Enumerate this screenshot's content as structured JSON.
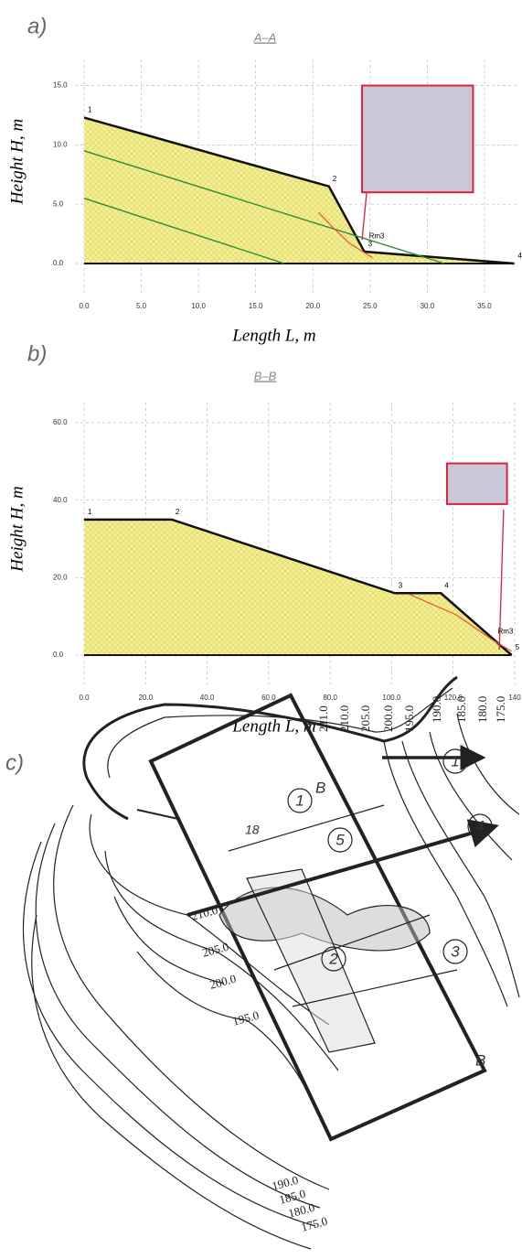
{
  "chart_data": [
    {
      "type": "area",
      "panel": "a)",
      "title": "A–A",
      "x_label": "Length  L, m",
      "y_label": "Height  H, m",
      "x": [
        0,
        21.4,
        24.5,
        37.6
      ],
      "values": [
        12.3,
        6.5,
        1.0,
        0
      ],
      "point_labels": [
        "1",
        "2",
        "3",
        "4"
      ],
      "fill": "#f4f08c",
      "line_color": "#111111",
      "lines": [
        {
          "x": [
            0,
            31.5
          ],
          "values": [
            9.5,
            0
          ],
          "color": "#2e8b3a"
        },
        {
          "x": [
            0,
            17.5
          ],
          "values": [
            5.5,
            0
          ],
          "color": "#2e8b3a"
        }
      ],
      "arc": {
        "x": [
          20.5,
          21.8,
          23.2,
          25.2
        ],
        "values": [
          4.3,
          3.0,
          1.7,
          0.5
        ],
        "color": "#e8503a"
      },
      "box": {
        "x": [
          24.3,
          34
        ],
        "y": [
          6,
          15
        ],
        "color": "#e0203c",
        "fill": "#c8c8d8"
      },
      "connector": {
        "x": [
          24.7,
          24.3
        ],
        "values": [
          6,
          2
        ],
        "color": "#e0203c"
      },
      "annotation": {
        "text": "Rm3",
        "x": 24.9,
        "y": 2.3
      },
      "xlim": [
        0,
        37.8
      ],
      "ylim": [
        0,
        17.2
      ],
      "xticks": [
        {
          "value": 0,
          "label": "0.0"
        },
        {
          "value": 5,
          "label": "5.0"
        },
        {
          "value": 10,
          "label": "10.0"
        },
        {
          "value": 15,
          "label": "15.0"
        },
        {
          "value": 20,
          "label": "20.0"
        },
        {
          "value": 25,
          "label": "25.0"
        },
        {
          "value": 30,
          "label": "30.0"
        },
        {
          "value": 35,
          "label": "35.0"
        }
      ],
      "yticks": [
        {
          "value": 0,
          "label": "0.0"
        },
        {
          "value": 5,
          "label": "5.0"
        },
        {
          "value": 10,
          "label": "10.0"
        },
        {
          "value": 15,
          "label": "15.0"
        }
      ],
      "grid": true
    },
    {
      "type": "area",
      "panel": "b)",
      "title": "B–B",
      "x_label": "Length  L, m",
      "y_label": "Height  H, m",
      "x": [
        0,
        28.5,
        101,
        116,
        139
      ],
      "values": [
        35,
        35,
        16,
        16,
        0
      ],
      "point_labels": [
        "1",
        "2",
        "3",
        "4",
        "5"
      ],
      "fill": "#f4f08c",
      "line_color": "#111111",
      "lines": [],
      "arc": {
        "x": [
          106,
          121,
          133,
          139
        ],
        "values": [
          15.6,
          10.4,
          3.8,
          1
        ],
        "color": "#e8503a"
      },
      "box": {
        "x": [
          118,
          137.5
        ],
        "y": [
          39,
          49.5
        ],
        "color": "#e0203c",
        "fill": "#c8c8d8"
      },
      "connector": {
        "x": [
          136.4,
          135
        ],
        "values": [
          37.6,
          1.4
        ],
        "color": "#e0203c"
      },
      "annotation": {
        "text": "Rm3",
        "x": 134.5,
        "y": 6
      },
      "xlim": [
        0,
        140
      ],
      "ylim": [
        0,
        65.2
      ],
      "xticks": [
        {
          "value": 0,
          "label": "0.0"
        },
        {
          "value": 20,
          "label": "20.0"
        },
        {
          "value": 40,
          "label": "40.0"
        },
        {
          "value": 60,
          "label": "60.0"
        },
        {
          "value": 80,
          "label": "80.0"
        },
        {
          "value": 100,
          "label": "100.0"
        },
        {
          "value": 120,
          "label": "120.0"
        },
        140
      ],
      "yticks": [
        {
          "value": 0,
          "label": "0.0"
        },
        {
          "value": 20,
          "label": "20.0"
        },
        {
          "value": 40,
          "label": "40.0"
        },
        {
          "value": 60,
          "label": "60.0"
        }
      ],
      "grid": true
    }
  ],
  "map": {
    "panel": "c)",
    "contours_top": [
      "211.0",
      "210.0",
      "205.0",
      "200.0",
      "195.0",
      "190.0",
      "185.0",
      "180.0",
      "175.0"
    ],
    "contours_left": [
      "210.0",
      "205.0",
      "200.0",
      "195.0"
    ],
    "contours_bottom": [
      "190.0",
      "185.0",
      "180.0",
      "175.0"
    ],
    "circles": [
      "1",
      "5",
      "1",
      "4",
      "2",
      "3"
    ],
    "section": [
      "B",
      "B"
    ],
    "point": "18"
  }
}
